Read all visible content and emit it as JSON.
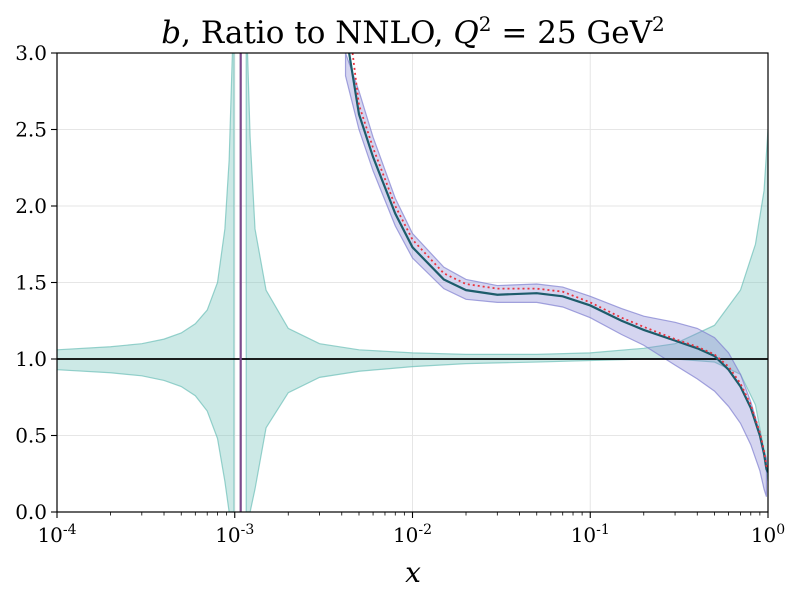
{
  "chart_data": {
    "type": "line",
    "title": "b, Ratio to NNLO, Q² = 25 GeV²",
    "title_parts": {
      "var": "b",
      "text": ", Ratio to NNLO, ",
      "q": "Q",
      "q_sup": "2",
      "eq": " = 25 GeV",
      "gev_sup": "2"
    },
    "xlabel": "x",
    "ylabel": "",
    "x_scale": "log",
    "xlim": [
      0.0001,
      1
    ],
    "ylim": [
      0,
      3
    ],
    "grid": true,
    "x_ticks": [
      {
        "value": 0.0001,
        "base": "10",
        "exp": "-4"
      },
      {
        "value": 0.001,
        "base": "10",
        "exp": "-3"
      },
      {
        "value": 0.01,
        "base": "10",
        "exp": "-2"
      },
      {
        "value": 0.1,
        "base": "10",
        "exp": "-1"
      },
      {
        "value": 1,
        "base": "10",
        "exp": "0"
      }
    ],
    "y_ticks": [
      {
        "value": 0,
        "label": "0.0"
      },
      {
        "value": 0.5,
        "label": "0.5"
      },
      {
        "value": 1,
        "label": "1.0"
      },
      {
        "value": 1.5,
        "label": "1.5"
      },
      {
        "value": 2,
        "label": "2.0"
      },
      {
        "value": 2.5,
        "label": "2.5"
      },
      {
        "value": 3,
        "label": "3.0"
      }
    ],
    "reference_line": {
      "y": 1,
      "color": "#000000"
    },
    "colors": {
      "teal_band": "#6cbfb8",
      "blue_band": "#7f7fd0",
      "central_line": "#1d5c6b",
      "dotted_line": "#e8343f",
      "spike_line": "#7b4a8c"
    },
    "bands": [
      {
        "name_hint": "teal-uncertainty-band",
        "color": "#6cbfb8",
        "opacity": 0.35,
        "segments": [
          {
            "x": [
              0.0001,
              0.0002,
              0.0003,
              0.0004,
              0.0005,
              0.0006,
              0.0007,
              0.0008,
              0.00088,
              0.00093,
              0.00097,
              0.00099
            ],
            "upper": [
              1.06,
              1.08,
              1.1,
              1.13,
              1.17,
              1.23,
              1.32,
              1.5,
              1.85,
              2.3,
              3.0,
              3.0
            ],
            "lower": [
              0.93,
              0.91,
              0.89,
              0.86,
              0.82,
              0.76,
              0.66,
              0.48,
              0.2,
              0.0,
              0.0,
              0.0
            ]
          },
          {
            "x": [
              0.00116,
              0.00118,
              0.00122,
              0.0013,
              0.0015,
              0.002,
              0.003,
              0.005,
              0.01,
              0.02,
              0.05,
              0.1,
              0.2,
              0.3,
              0.5,
              0.7,
              0.85,
              0.95,
              1.0
            ],
            "upper": [
              3.0,
              3.0,
              2.45,
              1.85,
              1.45,
              1.2,
              1.1,
              1.06,
              1.04,
              1.03,
              1.03,
              1.04,
              1.07,
              1.1,
              1.22,
              1.45,
              1.75,
              2.1,
              2.5
            ],
            "lower": [
              0.0,
              0.0,
              0.0,
              0.15,
              0.55,
              0.78,
              0.88,
              0.92,
              0.95,
              0.97,
              0.98,
              0.99,
              1.0,
              1.0,
              0.98,
              0.9,
              0.7,
              0.4,
              0.2
            ]
          }
        ]
      },
      {
        "name_hint": "blue-uncertainty-band",
        "color": "#7f7fd0",
        "opacity": 0.33,
        "segments": [
          {
            "x": [
              0.0042,
              0.005,
              0.006,
              0.008,
              0.01,
              0.015,
              0.02,
              0.03,
              0.05,
              0.07,
              0.1,
              0.15,
              0.2,
              0.3,
              0.4,
              0.5,
              0.6,
              0.7,
              0.8,
              0.9,
              0.95,
              0.98
            ],
            "upper": [
              3.0,
              2.75,
              2.45,
              2.05,
              1.82,
              1.6,
              1.52,
              1.48,
              1.49,
              1.47,
              1.41,
              1.33,
              1.28,
              1.24,
              1.2,
              1.14,
              1.04,
              0.9,
              0.72,
              0.52,
              0.4,
              0.35
            ],
            "lower": [
              2.85,
              2.5,
              2.23,
              1.87,
              1.66,
              1.46,
              1.39,
              1.37,
              1.37,
              1.34,
              1.27,
              1.16,
              1.09,
              0.96,
              0.87,
              0.79,
              0.69,
              0.58,
              0.44,
              0.27,
              0.15,
              0.1
            ]
          }
        ]
      }
    ],
    "series": [
      {
        "name_hint": "central-line",
        "color": "#1d5c6b",
        "style": "solid",
        "x": [
          0.0044,
          0.005,
          0.006,
          0.008,
          0.01,
          0.015,
          0.02,
          0.03,
          0.05,
          0.07,
          0.1,
          0.15,
          0.2,
          0.3,
          0.4,
          0.5,
          0.6,
          0.7,
          0.8,
          0.9,
          0.95,
          0.98,
          1.0
        ],
        "y": [
          3.0,
          2.6,
          2.32,
          1.95,
          1.73,
          1.52,
          1.45,
          1.42,
          1.43,
          1.41,
          1.35,
          1.25,
          1.19,
          1.12,
          1.07,
          1.02,
          0.93,
          0.82,
          0.68,
          0.5,
          0.38,
          0.28,
          0.26
        ]
      },
      {
        "name_hint": "dotted-line",
        "color": "#e8343f",
        "style": "dotted",
        "x": [
          0.0046,
          0.005,
          0.006,
          0.008,
          0.01,
          0.015,
          0.02,
          0.03,
          0.05,
          0.07,
          0.1,
          0.15,
          0.2,
          0.3,
          0.4,
          0.5,
          0.6,
          0.7,
          0.8,
          0.9,
          0.95,
          0.98,
          1.0
        ],
        "y": [
          3.0,
          2.66,
          2.38,
          2.0,
          1.78,
          1.56,
          1.49,
          1.46,
          1.46,
          1.44,
          1.37,
          1.27,
          1.21,
          1.13,
          1.08,
          1.03,
          0.95,
          0.84,
          0.7,
          0.52,
          0.4,
          0.3,
          0.28
        ]
      },
      {
        "name_hint": "spike-line",
        "color": "#7b4a8c",
        "style": "solid",
        "x": [
          0.00108,
          0.00108
        ],
        "y": [
          0.0,
          3.0
        ]
      }
    ]
  }
}
